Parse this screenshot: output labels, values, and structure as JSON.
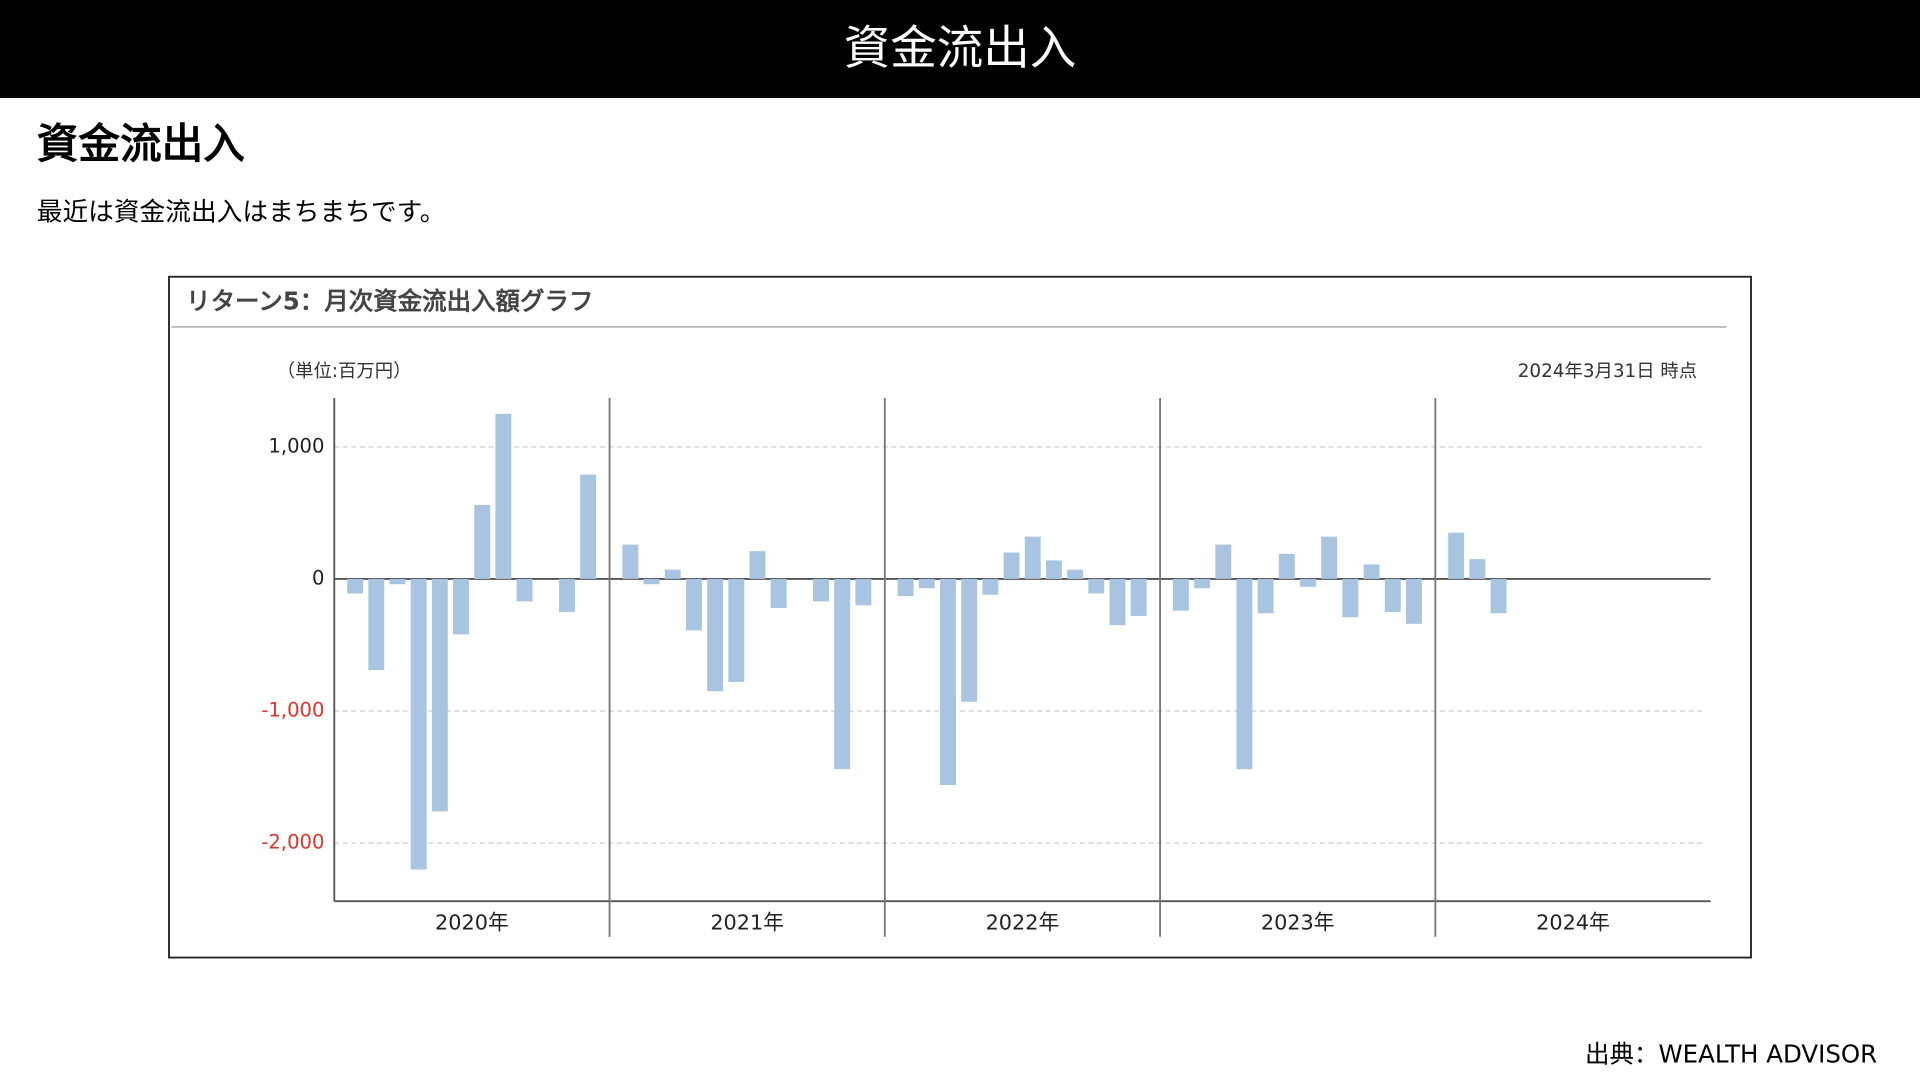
{
  "header": {
    "title": "資金流出入"
  },
  "heading": "資金流出入",
  "description": "最近は資金流出入はまちまちです。",
  "source": "出典：WEALTH ADVISOR",
  "chart_data": {
    "type": "bar",
    "title": "リターン5：月次資金流出入額グラフ",
    "unit_label": "（単位:百万円）",
    "date_label": "2024年3月31日 時点",
    "group_labels": [
      "2020年",
      "2021年",
      "2022年",
      "2023年",
      "2024年"
    ],
    "categories": [
      null,
      null,
      null,
      null,
      null,
      null,
      null,
      null,
      null,
      null,
      null,
      null,
      null,
      null,
      null,
      null,
      null,
      null,
      null,
      null,
      null,
      null,
      null,
      null,
      null,
      null,
      null,
      null,
      null,
      null,
      null,
      null,
      null,
      null,
      null,
      null,
      null,
      null,
      null,
      null,
      null,
      null,
      null,
      null,
      null,
      null,
      null,
      null,
      null,
      null,
      null
    ],
    "values": [
      -110,
      -690,
      -40,
      -2200,
      -1760,
      -420,
      560,
      1250,
      -170,
      0,
      -250,
      790,
      260,
      -40,
      70,
      -390,
      -850,
      -780,
      210,
      -220,
      0,
      -170,
      -1440,
      -200,
      -130,
      -70,
      -1560,
      -930,
      -120,
      200,
      320,
      140,
      70,
      -110,
      -350,
      -280,
      -240,
      -70,
      260,
      -1440,
      -260,
      190,
      -60,
      320,
      -290,
      110,
      -250,
      -340,
      350,
      150,
      -260
    ],
    "color": "#a9c4e0",
    "ylim": [
      -2440,
      1370
    ],
    "yticks": [
      {
        "value": 1000,
        "label": "1,000"
      },
      0,
      {
        "value": -1000,
        "label": "-1,000"
      },
      {
        "value": -2000,
        "label": "-2,000"
      }
    ],
    "negative_tick_color": "#e0322b",
    "grid": true
  }
}
